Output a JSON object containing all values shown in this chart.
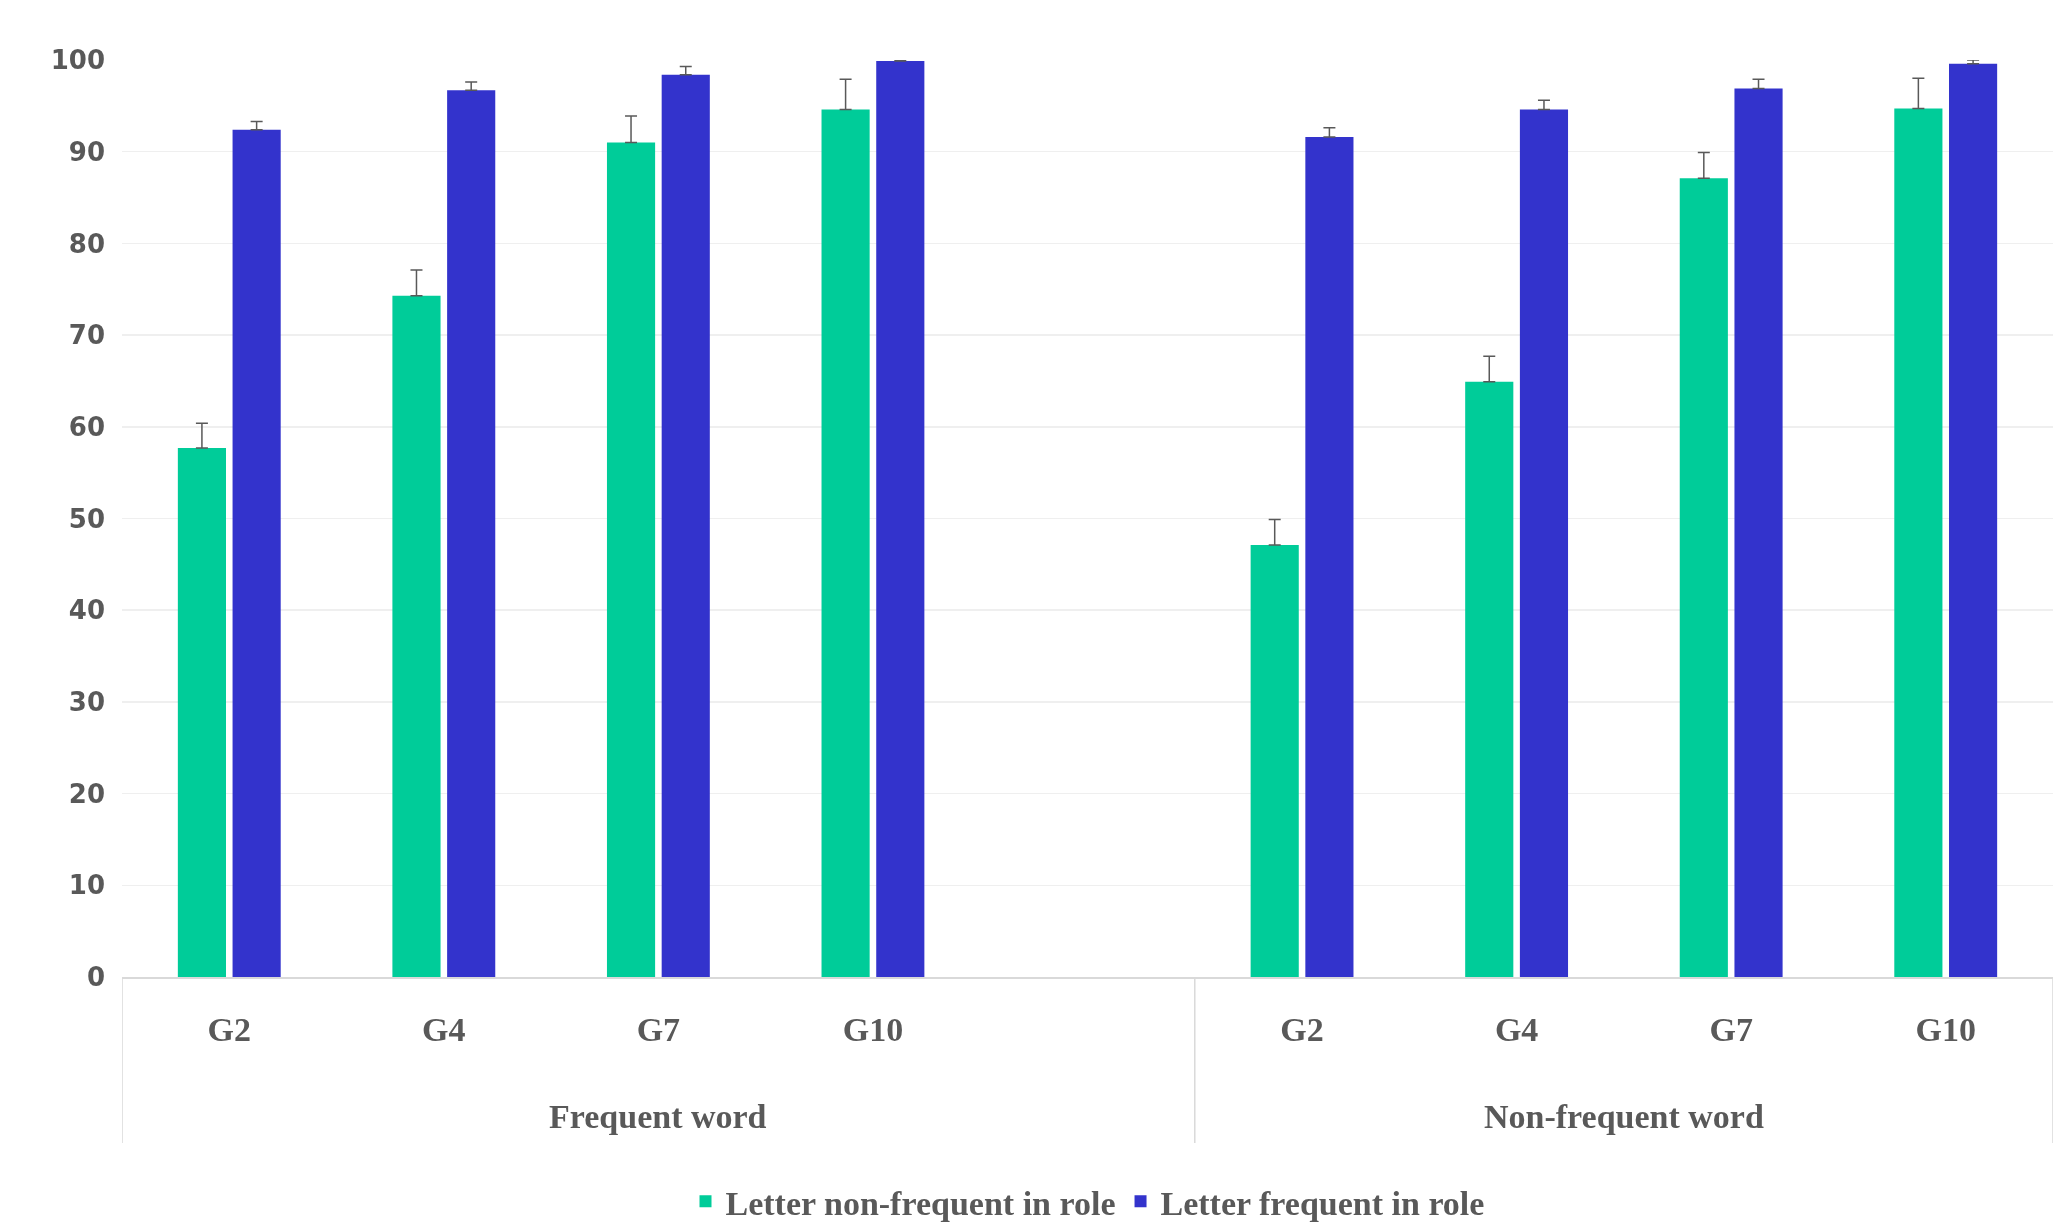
{
  "chart_data": {
    "type": "bar",
    "categories": [
      "G2",
      "G4",
      "G7",
      "G10",
      null,
      "G2",
      "G4",
      "G7",
      "G10"
    ],
    "series": [
      {
        "name": "Letter non-frequent in role",
        "color": "#00cc99",
        "values": [
          57.7,
          74.3,
          91.0,
          94.6,
          null,
          47.1,
          64.9,
          87.1,
          94.7
        ],
        "errors": [
          [
            57.7,
            60.4
          ],
          [
            74.3,
            77.1
          ],
          [
            91.0,
            93.9
          ],
          [
            94.6,
            97.9
          ],
          null,
          [
            47.1,
            49.9
          ],
          [
            64.9,
            67.7
          ],
          [
            87.1,
            89.9
          ],
          [
            94.7,
            98.0
          ]
        ]
      },
      {
        "name": "Letter frequent in role",
        "color": "#3333cc",
        "values": [
          92.4,
          96.7,
          98.4,
          99.9,
          null,
          91.6,
          94.6,
          96.9,
          99.6
        ],
        "errors": [
          [
            92.4,
            93.3
          ],
          [
            96.7,
            97.6
          ],
          [
            98.4,
            99.3
          ],
          [
            99.9,
            100
          ],
          null,
          [
            91.6,
            92.6
          ],
          [
            94.6,
            95.6
          ],
          [
            96.9,
            97.9
          ],
          [
            99.6,
            100
          ]
        ]
      }
    ],
    "annotations": [
      "Frequent word",
      "Non-frequent word"
    ],
    "ylim": [
      0,
      100
    ],
    "yticks": [
      0,
      10,
      20,
      30,
      40,
      50,
      60,
      70,
      80,
      90,
      100
    ],
    "grid": "y",
    "legend": "bottom"
  }
}
